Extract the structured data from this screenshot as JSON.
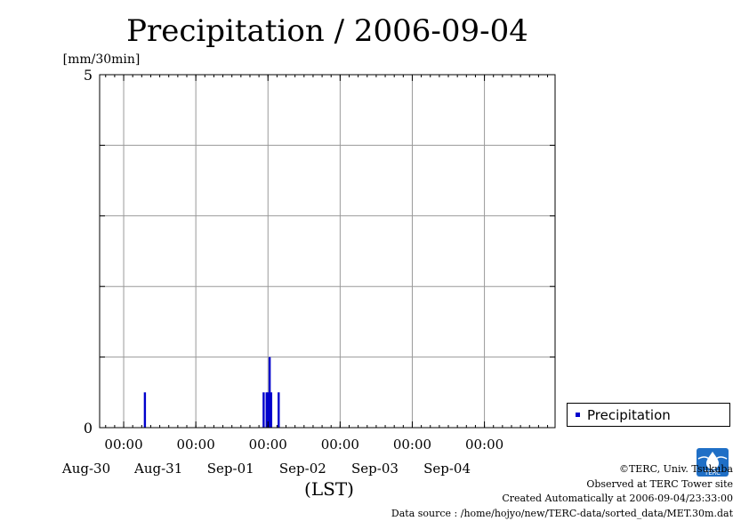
{
  "chart_data": {
    "type": "bar",
    "title": "Precipitation / 2006-09-04",
    "ylabel": "[mm/30min]",
    "xlabel": "(LST)",
    "ylim": [
      0,
      5
    ],
    "y_tick_labels": [
      "0",
      "5"
    ],
    "x_range": [
      "2006-08-29 16:00",
      "2006-09-04 23:30"
    ],
    "x_tick_times": [
      "2006-08-30 00:00",
      "2006-08-31 00:00",
      "2006-09-01 00:00",
      "2006-09-02 00:00",
      "2006-09-03 00:00",
      "2006-09-04 00:00"
    ],
    "x_tick_time_labels": [
      "00:00",
      "00:00",
      "00:00",
      "00:00",
      "00:00",
      "00:00"
    ],
    "x_tick_date_labels": [
      "Aug-30",
      "Aug-31",
      "Sep-01",
      "Sep-02",
      "Sep-03",
      "Sep-04"
    ],
    "grid": true,
    "legend_position": "right",
    "series": [
      {
        "name": "Precipitation",
        "color": "#0000cc",
        "x": [
          "2006-08-30 07:00",
          "2006-08-31 22:30",
          "2006-08-31 23:30",
          "2006-09-01 00:00",
          "2006-09-01 00:30",
          "2006-09-01 01:00",
          "2006-09-01 03:30"
        ],
        "values": [
          0.5,
          0.5,
          0.5,
          0.5,
          1.0,
          0.5,
          0.5
        ]
      }
    ]
  },
  "credits": {
    "copyright": "©TERC, Univ. Tsukuba",
    "site": "Observed at TERC Tower site",
    "created": "Created Automatically at 2006-09-04/23:33:00",
    "source": "Data source : /home/hojyo/new/TERC-data/sorted_data/MET.30m.dat"
  },
  "logo": {
    "text": "TERC",
    "color": "#1f6fc6"
  }
}
